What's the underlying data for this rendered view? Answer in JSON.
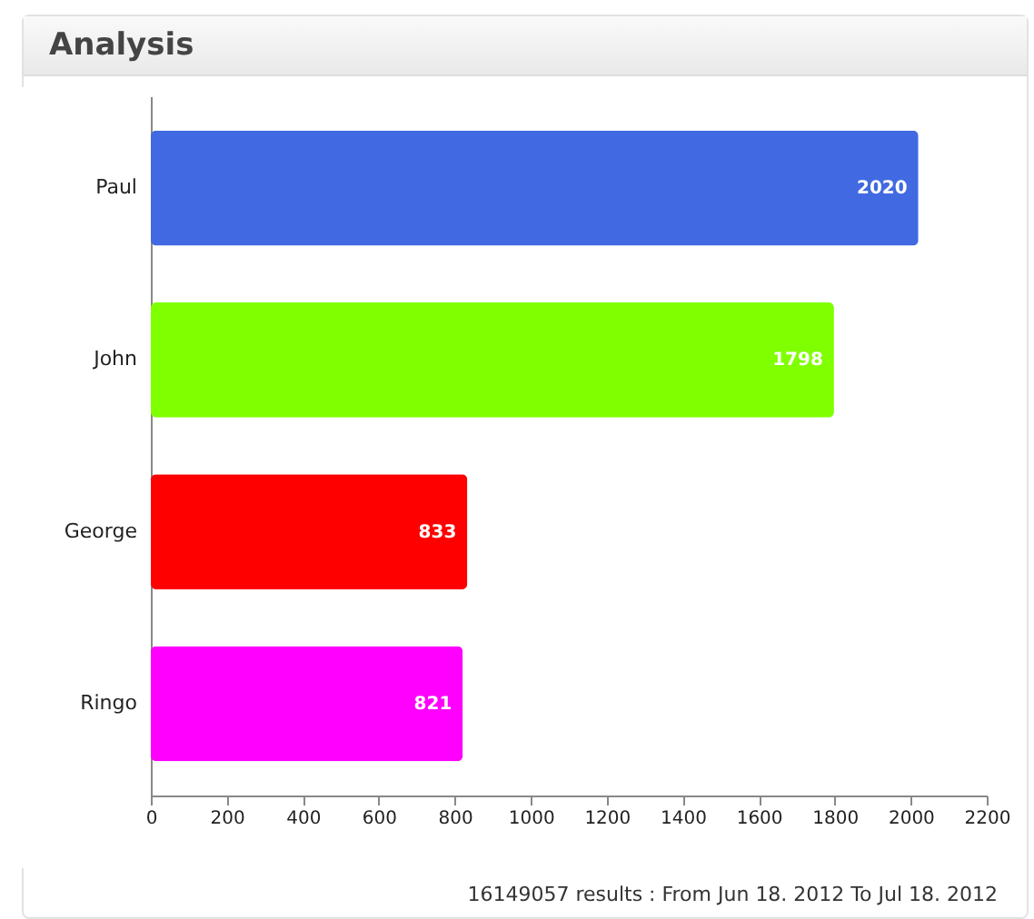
{
  "chart_data": {
    "type": "bar",
    "orientation": "horizontal",
    "title": "Analysis",
    "categories": [
      "Paul",
      "John",
      "George",
      "Ringo"
    ],
    "values": [
      2020,
      1798,
      833,
      821
    ],
    "colors": [
      "#4169e1",
      "#7fff00",
      "#ff0000",
      "#ff00ff"
    ],
    "xlim": [
      0,
      2200
    ],
    "xticks": [
      0,
      200,
      400,
      600,
      800,
      1000,
      1200,
      1400,
      1600,
      1800,
      2000,
      2200
    ],
    "grid": false,
    "data_labels": true,
    "annotations": [
      "16149057 results : From Jun 18. 2012 To Jul 18. 2012"
    ]
  }
}
